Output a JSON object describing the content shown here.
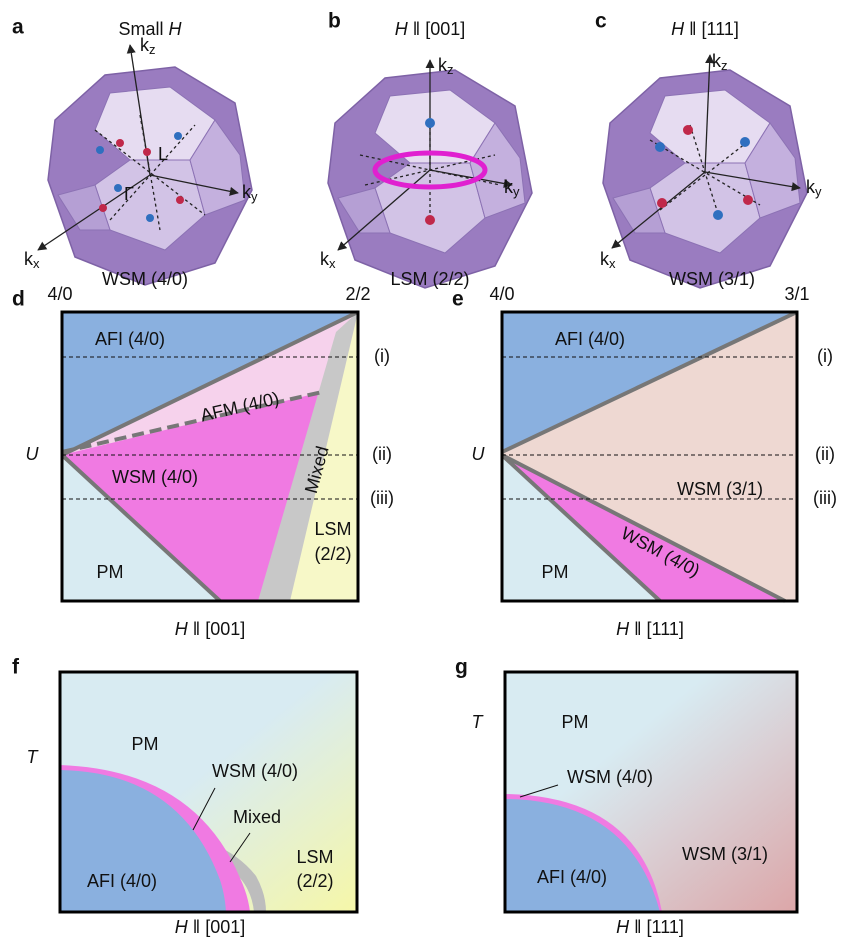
{
  "top": [
    {
      "letter": "a",
      "title": [
        {
          "t": "Small "
        },
        {
          "i": "H"
        }
      ],
      "axes": [
        {
          "k": "k",
          "s": "z"
        },
        {
          "k": "k",
          "s": "y"
        },
        {
          "k": "k",
          "s": "x"
        }
      ],
      "points": [
        "L",
        "Γ"
      ],
      "caption": "WSM (4/0)"
    },
    {
      "letter": "b",
      "title": [
        {
          "i": "H"
        },
        {
          "t": " ‖ [001]"
        }
      ],
      "axes": [
        {
          "k": "k",
          "s": "z"
        },
        {
          "k": "k",
          "s": "y"
        },
        {
          "k": "k",
          "s": "x"
        }
      ],
      "caption": "LSM (2/2)"
    },
    {
      "letter": "c",
      "title": [
        {
          "i": "H"
        },
        {
          "t": " ‖ [111]"
        }
      ],
      "axes": [
        {
          "k": "k",
          "s": "z"
        },
        {
          "k": "k",
          "s": "y"
        },
        {
          "k": "k",
          "s": "x"
        }
      ],
      "caption": "WSM (3/1)"
    }
  ],
  "d": {
    "letter": "d",
    "left_top": "4/0",
    "right_top": "2/2",
    "y_label": "U",
    "x_label": [
      {
        "i": "H"
      },
      {
        "t": " ‖ [001]"
      }
    ],
    "regions": {
      "afi": "AFI (4/0)",
      "afm": "AFM (4/0)",
      "wsm": "WSM (4/0)",
      "mixed": "Mixed",
      "lsm": [
        "LSM",
        "(2/2)"
      ],
      "pm": "PM"
    },
    "cuts": [
      "(i)",
      "(ii)",
      "(iii)"
    ]
  },
  "e": {
    "letter": "e",
    "left_top": "4/0",
    "right_top": "3/1",
    "y_label": "U",
    "x_label": [
      {
        "i": "H"
      },
      {
        "t": " ‖ [111]"
      }
    ],
    "regions": {
      "afi": "AFI (4/0)",
      "wsm31": "WSM (3/1)",
      "wsm40": "WSM (4/0)",
      "pm": "PM"
    },
    "cuts": [
      "(i)",
      "(ii)",
      "(iii)"
    ]
  },
  "f": {
    "letter": "f",
    "y_label": "T",
    "x_label": [
      {
        "i": "H"
      },
      {
        "t": " ‖ [001]"
      }
    ],
    "regions": {
      "pm": "PM",
      "wsm": "WSM (4/0)",
      "mixed": "Mixed",
      "lsm": [
        "LSM",
        "(2/2)"
      ],
      "afi": "AFI (4/0)"
    }
  },
  "g": {
    "letter": "g",
    "y_label": "T",
    "x_label": [
      {
        "i": "H"
      },
      {
        "t": " ‖ [111]"
      }
    ],
    "regions": {
      "pm": "PM",
      "wsm40": "WSM (4/0)",
      "afi": "AFI (4/0)",
      "wsm31": "WSM (3/1)"
    }
  }
}
